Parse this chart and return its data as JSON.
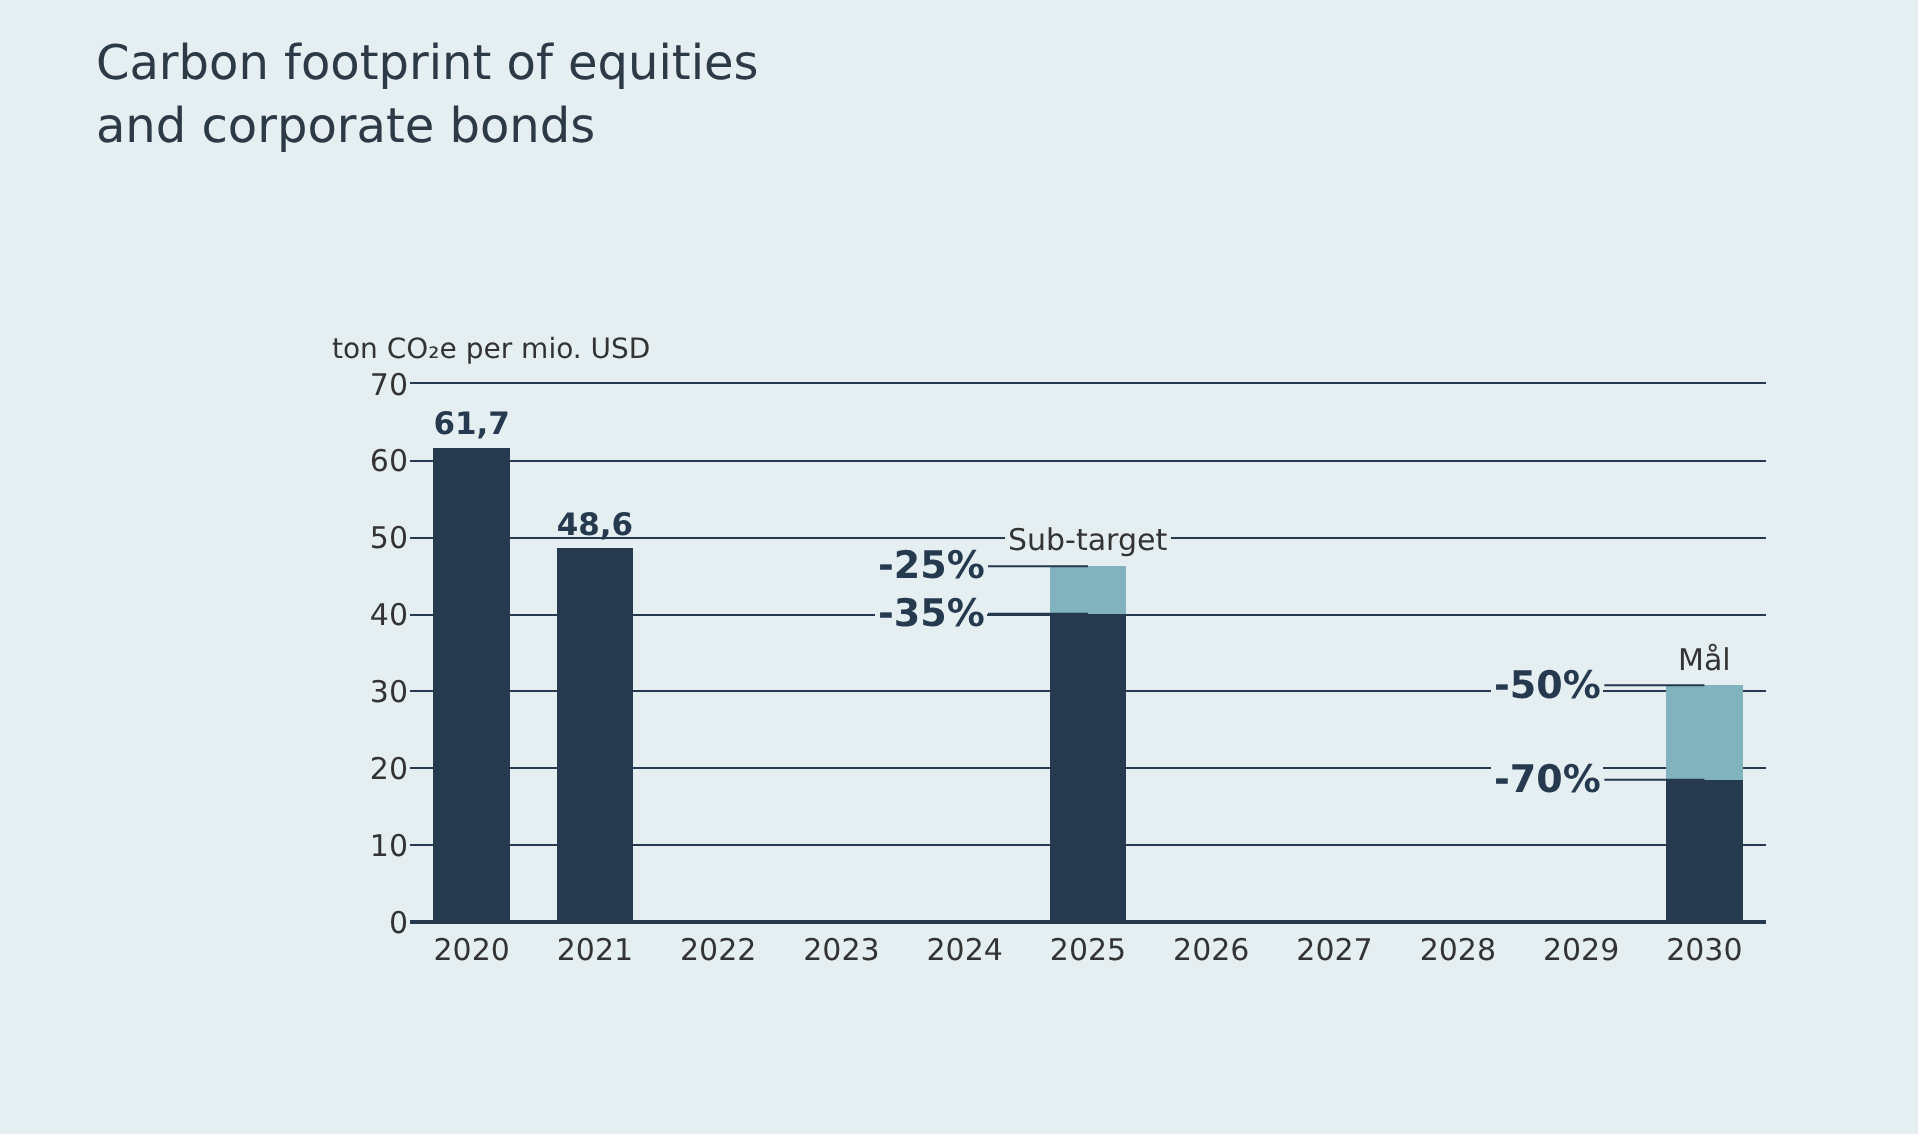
{
  "chart_data": {
    "type": "bar",
    "stacked": true,
    "title": "Carbon footprint of equities\nand corporate bonds",
    "ylabel": "ton CO₂e per mio. USD",
    "categories": [
      "2020",
      "2021",
      "2022",
      "2023",
      "2024",
      "2025",
      "2026",
      "2027",
      "2028",
      "2029",
      "2030"
    ],
    "series": [
      {
        "color": "#253a4f",
        "values": [
          61.7,
          48.6,
          null,
          null,
          null,
          40.1,
          null,
          null,
          null,
          null,
          18.5
        ],
        "value_labels": [
          "61,7",
          "48,6",
          null,
          null,
          null,
          null,
          null,
          null,
          null,
          null,
          null
        ]
      },
      {
        "color": "#80b3be",
        "values": [
          null,
          null,
          null,
          null,
          null,
          6.2,
          null,
          null,
          null,
          null,
          12.3
        ]
      }
    ],
    "ylim": [
      0,
      70
    ],
    "yticks": [
      0,
      10,
      20,
      30,
      40,
      50,
      60,
      70
    ],
    "grid": "y",
    "annotations": [
      {
        "text": "Sub-target",
        "x": "2025",
        "y": 46.3
      },
      {
        "text": "-25%",
        "x": "2025",
        "y": 46.3
      },
      {
        "text": "-35%",
        "x": "2025",
        "y": 40.1
      },
      {
        "text": "Mål",
        "x": "2030",
        "y": 30.8
      },
      {
        "text": "-50%",
        "x": "2030",
        "y": 30.8
      },
      {
        "text": "-70%",
        "x": "2030",
        "y": 18.5
      }
    ]
  }
}
